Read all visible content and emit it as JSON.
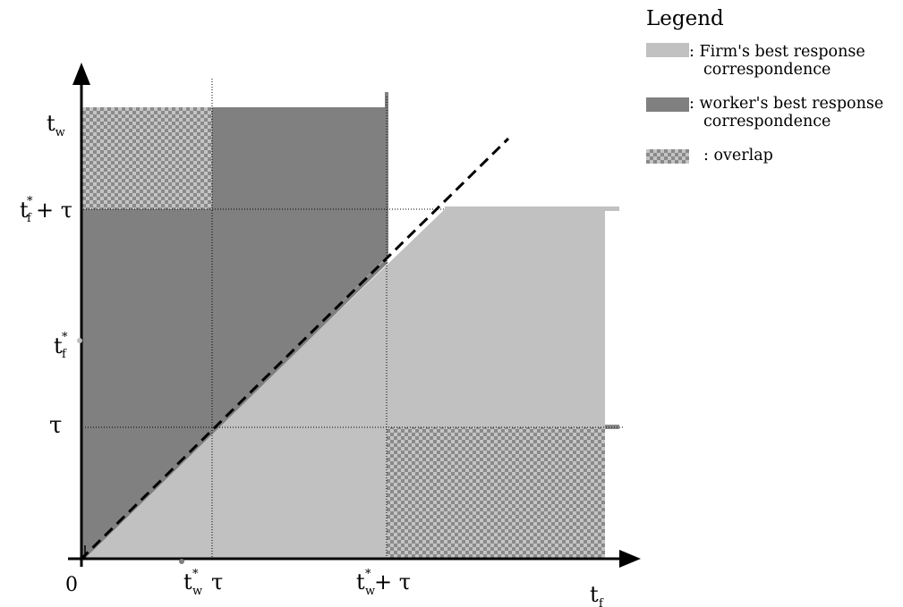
{
  "legend": {
    "title": "Legend",
    "items": [
      {
        "name": "firm",
        "lines": [
          ": Firm's best response",
          "correspondence"
        ],
        "color": "#c1c1c1"
      },
      {
        "name": "worker",
        "lines": [
          ": worker's best response",
          "correspondence"
        ],
        "color": "#808080"
      },
      {
        "name": "overlap",
        "lines": [
          ": overlap"
        ],
        "color": "checkered"
      }
    ]
  },
  "axes": {
    "origin": "0",
    "x_axis": "t",
    "x_axis_sub": "f",
    "y_ticks": [
      {
        "base": "t",
        "sub": "w",
        "sup": ""
      },
      {
        "base": "t",
        "sub": "f",
        "sup": "*",
        "tail": "+ τ"
      },
      {
        "base": "t",
        "sub": "f",
        "sup": "*",
        "tail": ""
      },
      {
        "base": "τ",
        "sub": "",
        "sup": "",
        "tail": ""
      }
    ],
    "x_ticks": [
      {
        "base": "t",
        "sub": "w",
        "sup": "*",
        "tail": "τ"
      },
      {
        "base": "t",
        "sub": "w",
        "sup": "*",
        "tail": "+ τ"
      }
    ]
  },
  "colors": {
    "firm": "#c1c1c1",
    "worker": "#808080",
    "overlap_dark": "#8a8a8a",
    "overlap_light": "#c4c4c4"
  }
}
